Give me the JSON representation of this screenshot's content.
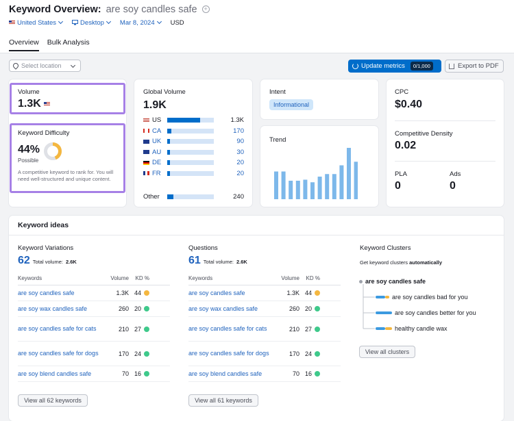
{
  "header": {
    "title": "Keyword Overview:",
    "keyword": "are soy candles safe",
    "filters": {
      "country": "United States",
      "device": "Desktop",
      "date": "Mar 8, 2024",
      "currency": "USD"
    },
    "tabs": [
      "Overview",
      "Bulk Analysis"
    ]
  },
  "toolbar": {
    "location_placeholder": "Select location",
    "update_label": "Update metrics",
    "update_count": "0/1,000",
    "export_label": "Export to PDF"
  },
  "volume": {
    "label": "Volume",
    "value": "1.3K"
  },
  "kd": {
    "label": "Keyword Difficulty",
    "value": "44%",
    "level": "Possible",
    "percent": 44,
    "description": "A competitive keyword to rank for. You will need well-structured and unique content."
  },
  "global": {
    "label": "Global Volume",
    "value": "1.9K",
    "rows": [
      {
        "code": "US",
        "value": "1.3K",
        "share": 0.7
      },
      {
        "code": "CA",
        "value": "170",
        "share": 0.09
      },
      {
        "code": "UK",
        "value": "90",
        "share": 0.05
      },
      {
        "code": "AU",
        "value": "30",
        "share": 0.02
      },
      {
        "code": "DE",
        "value": "20",
        "share": 0.015
      },
      {
        "code": "FR",
        "value": "20",
        "share": 0.015
      }
    ],
    "other_label": "Other",
    "other_value": "240",
    "other_share": 0.13
  },
  "intent": {
    "label": "Intent",
    "badge": "Informational"
  },
  "trend": {
    "label": "Trend",
    "values": [
      0.54,
      0.54,
      0.36,
      0.36,
      0.38,
      0.33,
      0.44,
      0.49,
      0.49,
      0.66,
      1.0,
      0.73
    ]
  },
  "cpc": {
    "label": "CPC",
    "value": "$0.40"
  },
  "density": {
    "label": "Competitive Density",
    "value": "0.02"
  },
  "pla": {
    "label": "PLA",
    "value": "0"
  },
  "ads": {
    "label": "Ads",
    "value": "0"
  },
  "ideas": {
    "title": "Keyword ideas",
    "variations": {
      "label": "Keyword Variations",
      "count": "62",
      "total_label": "Total volume:",
      "total": "2.6K",
      "col_keywords": "Keywords",
      "col_volume": "Volume",
      "col_kd": "KD %",
      "rows": [
        {
          "k": "are soy candles safe",
          "vol": "1.3K",
          "kd": "44",
          "color": "#f4b740"
        },
        {
          "k": "are soy wax candles safe",
          "vol": "260",
          "kd": "20",
          "color": "#3fc98b"
        },
        {
          "k": "are soy candles safe for cats",
          "vol": "210",
          "kd": "27",
          "color": "#3fc98b"
        },
        {
          "k": "are soy candles safe for dogs",
          "vol": "170",
          "kd": "24",
          "color": "#3fc98b"
        },
        {
          "k": "are soy blend candles safe",
          "vol": "70",
          "kd": "16",
          "color": "#3fc98b"
        }
      ],
      "button": "View all 62 keywords"
    },
    "questions": {
      "label": "Questions",
      "count": "61",
      "total_label": "Total volume:",
      "total": "2.6K",
      "col_keywords": "Keywords",
      "col_volume": "Volume",
      "col_kd": "KD %",
      "rows": [
        {
          "k": "are soy candles safe",
          "vol": "1.3K",
          "kd": "44",
          "color": "#f4b740"
        },
        {
          "k": "are soy wax candles safe",
          "vol": "260",
          "kd": "20",
          "color": "#3fc98b"
        },
        {
          "k": "are soy candles safe for cats",
          "vol": "210",
          "kd": "27",
          "color": "#3fc98b"
        },
        {
          "k": "are soy candles safe for dogs",
          "vol": "170",
          "kd": "24",
          "color": "#3fc98b"
        },
        {
          "k": "are soy blend candles safe",
          "vol": "70",
          "kd": "16",
          "color": "#3fc98b"
        }
      ],
      "button": "View all 61 keywords"
    },
    "clusters": {
      "label": "Keyword Clusters",
      "hint": "Get keyword clusters",
      "hint_bold": "automatically",
      "root": "are soy candles safe",
      "items": [
        "are soy candles bad for you",
        "are soy candles better for you",
        "healthy candle wax"
      ],
      "button": "View all clusters"
    }
  }
}
